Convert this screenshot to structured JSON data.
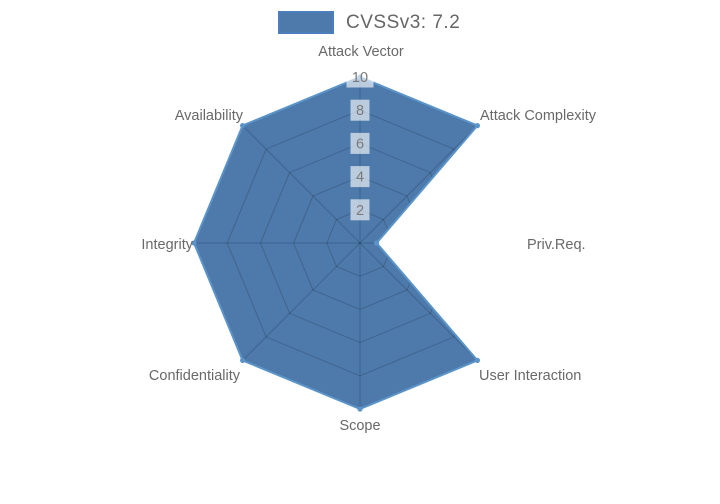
{
  "legend": {
    "label": "CVSSv3: 7.2",
    "swatch_fill": "#4d79ab",
    "swatch_border": "#4a7ebd"
  },
  "colors": {
    "background": "#ffffff",
    "series_fill": "#4d79ab",
    "series_stroke": "#5b94c9",
    "grid_line": "rgba(0,0,0,0.17)",
    "axis_label_text": "#696969",
    "tick_text": "#7b7b7b",
    "tick_box": "rgba(255,255,255,0.62)"
  },
  "chart_data": {
    "type": "radar",
    "title": "CVSSv3: 7.2",
    "categories": [
      "Attack Vector",
      "Attack Complexity",
      "Priv.Req.",
      "User Interaction",
      "Scope",
      "Confidentiality",
      "Integrity",
      "Availability"
    ],
    "series": [
      {
        "name": "CVSSv3: 7.2",
        "values": [
          10,
          10,
          1,
          10,
          10,
          10,
          10,
          10
        ]
      }
    ],
    "radial_ticks": [
      "2",
      "4",
      "6",
      "8",
      "10"
    ],
    "rlim": [
      0,
      10
    ],
    "grid": "spider-web, rings at 2/4/6/8/10, visible only inside filled polygon",
    "legend_position": "top-center"
  }
}
